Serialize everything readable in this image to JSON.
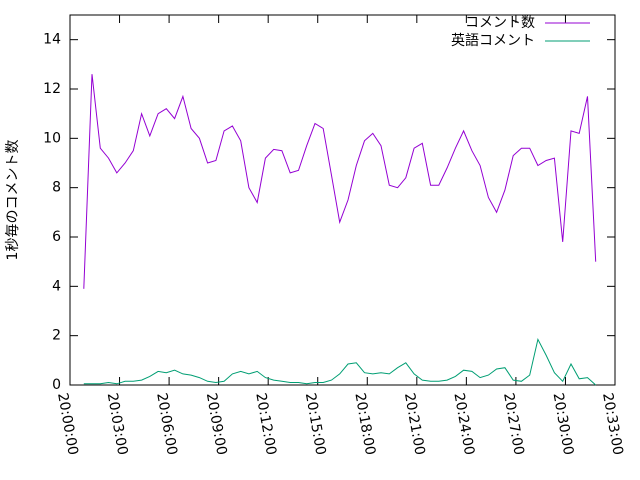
{
  "chart_data": {
    "type": "line",
    "y_label": "1秒毎のコメント数",
    "xlim": [
      "20:00:00",
      "20:33:00"
    ],
    "xticks": [
      "20:00:00",
      "20:03:00",
      "20:06:00",
      "20:09:00",
      "20:12:00",
      "20:15:00",
      "20:18:00",
      "20:21:00",
      "20:24:00",
      "20:27:00",
      "20:30:00",
      "20:33:00"
    ],
    "ylim": [
      0,
      15
    ],
    "yticks": [
      0,
      2,
      4,
      6,
      8,
      10,
      12,
      14
    ],
    "legend": "top-right",
    "x": [
      "20:00:50",
      "20:01:20",
      "20:01:50",
      "20:02:20",
      "20:02:50",
      "20:03:20",
      "20:03:50",
      "20:04:20",
      "20:04:50",
      "20:05:20",
      "20:05:50",
      "20:06:20",
      "20:06:50",
      "20:07:20",
      "20:07:50",
      "20:08:20",
      "20:08:50",
      "20:09:20",
      "20:09:50",
      "20:10:20",
      "20:10:50",
      "20:11:20",
      "20:11:50",
      "20:12:20",
      "20:12:50",
      "20:13:20",
      "20:13:50",
      "20:14:20",
      "20:14:50",
      "20:15:20",
      "20:15:50",
      "20:16:20",
      "20:16:50",
      "20:17:20",
      "20:17:50",
      "20:18:20",
      "20:18:50",
      "20:19:20",
      "20:19:50",
      "20:20:20",
      "20:20:50",
      "20:21:20",
      "20:21:50",
      "20:22:20",
      "20:22:50",
      "20:23:20",
      "20:23:50",
      "20:24:20",
      "20:24:50",
      "20:25:20",
      "20:25:50",
      "20:26:20",
      "20:26:50",
      "20:27:20",
      "20:27:50",
      "20:28:20",
      "20:28:50",
      "20:29:20",
      "20:29:50",
      "20:30:20",
      "20:30:50",
      "20:31:20",
      "20:31:50"
    ],
    "series": [
      {
        "name": "コメント数",
        "color": "#9400d3",
        "values": [
          3.9,
          12.6,
          9.6,
          9.2,
          8.6,
          9.0,
          9.5,
          11.0,
          10.1,
          11.0,
          11.2,
          10.8,
          11.7,
          10.4,
          10.0,
          9.0,
          9.1,
          10.3,
          10.5,
          9.9,
          8.0,
          7.4,
          9.2,
          9.55,
          9.5,
          8.6,
          8.7,
          9.7,
          10.6,
          10.4,
          8.5,
          6.6,
          7.5,
          8.9,
          9.9,
          10.2,
          9.7,
          8.1,
          8.0,
          8.4,
          9.6,
          9.8,
          8.1,
          8.1,
          8.8,
          9.6,
          10.3,
          9.5,
          8.9,
          7.6,
          7.0,
          7.9,
          9.3,
          9.6,
          9.6,
          8.9,
          9.1,
          9.2,
          5.8,
          10.3,
          10.2,
          11.7,
          5.0
        ]
      },
      {
        "name": "英語コメント",
        "color": "#009e73",
        "values": [
          0.05,
          0.05,
          0.05,
          0.1,
          0.05,
          0.15,
          0.15,
          0.2,
          0.35,
          0.55,
          0.5,
          0.6,
          0.45,
          0.4,
          0.3,
          0.15,
          0.1,
          0.15,
          0.45,
          0.55,
          0.45,
          0.55,
          0.3,
          0.2,
          0.15,
          0.1,
          0.1,
          0.05,
          0.1,
          0.1,
          0.2,
          0.45,
          0.85,
          0.9,
          0.5,
          0.45,
          0.5,
          0.45,
          0.7,
          0.9,
          0.45,
          0.2,
          0.15,
          0.15,
          0.2,
          0.35,
          0.6,
          0.55,
          0.3,
          0.4,
          0.65,
          0.7,
          0.2,
          0.15,
          0.4,
          1.85,
          1.2,
          0.5,
          0.15,
          0.85,
          0.25,
          0.3,
          0.0
        ]
      }
    ]
  }
}
